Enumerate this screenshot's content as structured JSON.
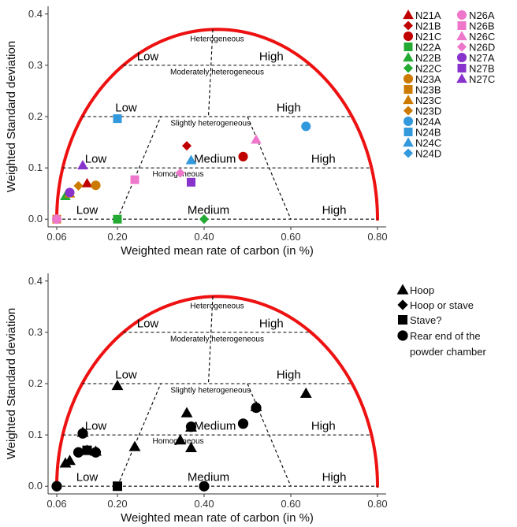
{
  "chart_data": [
    {
      "type": "scatter",
      "xlabel": "Weighted mean rate of carbon (in %)",
      "ylabel": "Weighted Standard deviation",
      "xlim": [
        0.04,
        0.82
      ],
      "ylim": [
        -0.015,
        0.415
      ],
      "x_ticks": [
        "0.06",
        "0.20",
        "0.40",
        "0.60",
        "0.80"
      ],
      "x_tick_values": [
        0.06,
        0.2,
        0.4,
        0.6,
        0.8
      ],
      "y_ticks": [
        "0.0",
        "0.1",
        "0.2",
        "0.3",
        "0.4"
      ],
      "y_tick_values": [
        0.0,
        0.1,
        0.2,
        0.3,
        0.4
      ],
      "boundary_color": "#ee1111",
      "legend_position": "right",
      "series": [
        {
          "name": "N21A",
          "shape": "triangle",
          "color": "#c00000",
          "x": 0.13,
          "y": 0.07
        },
        {
          "name": "N21B",
          "shape": "diamond",
          "color": "#c00000",
          "x": 0.36,
          "y": 0.143
        },
        {
          "name": "N21C",
          "shape": "circle",
          "color": "#c00000",
          "x": 0.49,
          "y": 0.122
        },
        {
          "name": "N22A",
          "shape": "square",
          "color": "#22aa33",
          "x": 0.2,
          "y": 0.0
        },
        {
          "name": "N22B",
          "shape": "triangle",
          "color": "#22aa33",
          "x": 0.08,
          "y": 0.045
        },
        {
          "name": "N22C",
          "shape": "diamond",
          "color": "#22aa33",
          "x": 0.4,
          "y": 0.0
        },
        {
          "name": "N23A",
          "shape": "circle",
          "color": "#cc7a00",
          "x": 0.15,
          "y": 0.066
        },
        {
          "name": "N23B",
          "shape": "square",
          "color": "#cc7a00",
          "x": 0.06,
          "y": 0.0
        },
        {
          "name": "N23C",
          "shape": "triangle",
          "color": "#cc7a00",
          "x": 0.09,
          "y": 0.05
        },
        {
          "name": "N23D",
          "shape": "diamond",
          "color": "#cc7a00",
          "x": 0.11,
          "y": 0.065
        },
        {
          "name": "N24A",
          "shape": "circle",
          "color": "#3399dd",
          "x": 0.635,
          "y": 0.181
        },
        {
          "name": "N24B",
          "shape": "square",
          "color": "#3399dd",
          "x": 0.2,
          "y": 0.196
        },
        {
          "name": "N24C",
          "shape": "triangle",
          "color": "#3399dd",
          "x": 0.37,
          "y": 0.115
        },
        {
          "name": "N24D",
          "shape": "diamond",
          "color": "#3399dd",
          "x": 0.06,
          "y": 0.0
        },
        {
          "name": "N26A",
          "shape": "circle",
          "color": "#ee77cc",
          "x": 0.06,
          "y": 0.0
        },
        {
          "name": "N26B",
          "shape": "square",
          "color": "#ee77cc",
          "x": 0.24,
          "y": 0.077
        },
        {
          "name": "N26C",
          "shape": "triangle",
          "color": "#ee77cc",
          "x": 0.52,
          "y": 0.155
        },
        {
          "name": "N26D",
          "shape": "diamond",
          "color": "#ee77cc",
          "x": 0.345,
          "y": 0.09
        },
        {
          "name": "N27A",
          "shape": "circle",
          "color": "#8833cc",
          "x": 0.09,
          "y": 0.052
        },
        {
          "name": "N27B",
          "shape": "square",
          "color": "#8833cc",
          "x": 0.37,
          "y": 0.072
        },
        {
          "name": "N27C",
          "shape": "triangle",
          "color": "#8833cc",
          "x": 0.12,
          "y": 0.105
        }
      ]
    },
    {
      "type": "scatter",
      "xlabel": "Weighted mean rate of carbon (in %)",
      "ylabel": "Weighted Standard deviation",
      "xlim": [
        0.04,
        0.82
      ],
      "ylim": [
        -0.015,
        0.415
      ],
      "x_ticks": [
        "0.06",
        "0.20",
        "0.40",
        "0.60",
        "0.80"
      ],
      "x_tick_values": [
        0.06,
        0.2,
        0.4,
        0.6,
        0.8
      ],
      "y_ticks": [
        "0.0",
        "0.1",
        "0.2",
        "0.3",
        "0.4"
      ],
      "y_tick_values": [
        0.0,
        0.1,
        0.2,
        0.3,
        0.4
      ],
      "boundary_color": "#ee1111",
      "legend_position": "right",
      "series": [
        {
          "name": "Hoop",
          "shape": "triangle",
          "color": "#000000",
          "points": [
            [
              0.13,
              0.07
            ],
            [
              0.08,
              0.045
            ],
            [
              0.09,
              0.05
            ],
            [
              0.37,
              0.115
            ],
            [
              0.12,
              0.105
            ],
            [
              0.52,
              0.155
            ],
            [
              0.635,
              0.181
            ],
            [
              0.2,
              0.196
            ],
            [
              0.36,
              0.143
            ],
            [
              0.345,
              0.09
            ],
            [
              0.37,
              0.075
            ],
            [
              0.24,
              0.077
            ],
            [
              0.15,
              0.068
            ]
          ]
        },
        {
          "name": "Hoop or stave",
          "shape": "diamond",
          "color": "#000000",
          "points": [
            [
              0.06,
              0.0
            ]
          ]
        },
        {
          "name": "Stave?",
          "shape": "square",
          "color": "#000000",
          "points": [
            [
              0.2,
              0.0
            ],
            [
              0.13,
              0.07
            ]
          ]
        },
        {
          "name": "Rear end of the powder chamber",
          "shape": "circle",
          "color": "#000000",
          "points": [
            [
              0.49,
              0.122
            ],
            [
              0.52,
              0.153
            ],
            [
              0.15,
              0.066
            ],
            [
              0.11,
              0.066
            ],
            [
              0.12,
              0.103
            ],
            [
              0.4,
              0.0
            ],
            [
              0.37,
              0.116
            ],
            [
              0.06,
              0.0
            ]
          ]
        }
      ]
    }
  ],
  "regions": {
    "heterogeneous": "Heterogeneous",
    "moderately": "Moderately heterogeneous",
    "slightly": "Slightly heterogeneous",
    "homogeneous": "Homogeneous",
    "low": "Low",
    "medium": "Medium",
    "high": "High"
  }
}
